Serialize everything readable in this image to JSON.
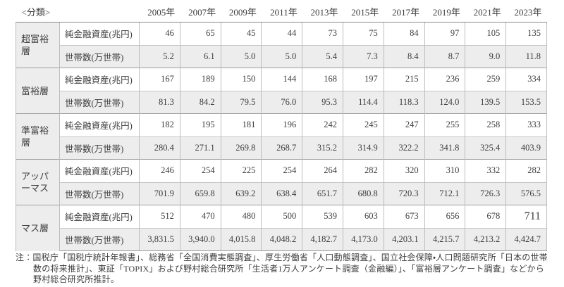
{
  "header": {
    "classification_label": "<分類>",
    "years": [
      "2005年",
      "2007年",
      "2009年",
      "2011年",
      "2013年",
      "2015年",
      "2017年",
      "2019年",
      "2021年",
      "2023年"
    ]
  },
  "metrics": {
    "assets_label": "純金融資産(兆円)",
    "households_label": "世帯数(万世帯)"
  },
  "groups": [
    {
      "name": "超富裕層",
      "assets": [
        "46",
        "65",
        "45",
        "44",
        "73",
        "75",
        "84",
        "97",
        "105",
        "135"
      ],
      "households": [
        "5.2",
        "6.1",
        "5.0",
        "5.0",
        "5.4",
        "7.3",
        "8.4",
        "8.7",
        "9.0",
        "11.8"
      ]
    },
    {
      "name": "富裕層",
      "assets": [
        "167",
        "189",
        "150",
        "144",
        "168",
        "197",
        "215",
        "236",
        "259",
        "334"
      ],
      "households": [
        "81.3",
        "84.2",
        "79.5",
        "76.0",
        "95.3",
        "114.4",
        "118.3",
        "124.0",
        "139.5",
        "153.5"
      ]
    },
    {
      "name": "準富裕層",
      "assets": [
        "182",
        "195",
        "181",
        "196",
        "242",
        "245",
        "247",
        "255",
        "258",
        "333"
      ],
      "households": [
        "280.4",
        "271.1",
        "269.8",
        "268.7",
        "315.2",
        "314.9",
        "322.2",
        "341.8",
        "325.4",
        "403.9"
      ]
    },
    {
      "name": "アッパーマス",
      "assets": [
        "246",
        "254",
        "225",
        "254",
        "264",
        "282",
        "320",
        "310",
        "332",
        "282"
      ],
      "households": [
        "701.9",
        "659.8",
        "639.2",
        "638.4",
        "651.7",
        "680.8",
        "720.3",
        "712.1",
        "726.3",
        "576.5"
      ]
    },
    {
      "name": "マス層",
      "assets": [
        "512",
        "470",
        "480",
        "500",
        "539",
        "603",
        "673",
        "656",
        "678",
        "711"
      ],
      "households": [
        "3,831.5",
        "3,940.0",
        "4,015.8",
        "4,048.2",
        "4,182.7",
        "4,173.0",
        "4,203.1",
        "4,215.7",
        "4,213.2",
        "4,424.7"
      ]
    }
  ],
  "note": {
    "lines": [
      "注：国税庁「国税庁統計年報書」、総務省「全国消費実態調査」、厚生労働省「人口動態調査」、国立社会保障・人口問題研究所「日本の世帯",
      "数の将来推計」、東証「TOPIX」および野村総合研究所「生活者1万人アンケート調査（金融編）」、「富裕層アンケート調査」などから",
      "野村総合研究所推計。"
    ]
  },
  "colors": {
    "row_shade": "#ededed",
    "grid_line": "#bdbdbd",
    "group_line": "#9e9e9e",
    "header_line": "#8a8a8a",
    "text": "#3d3d3d"
  }
}
